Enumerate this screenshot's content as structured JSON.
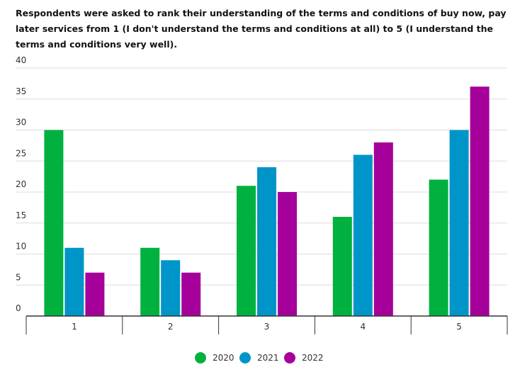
{
  "subtitle": "Respondents were asked to rank their understanding of the terms and conditions of buy now, pay later services from 1 (I don't understand the terms and conditions at all) to 5 (I understand the terms and conditions very well).",
  "colors": {
    "2020": "#00b140",
    "2021": "#0095c8",
    "2022": "#a6009a",
    "gridline": "#dcdcdc",
    "axis": "#333333"
  },
  "chart_data": {
    "type": "bar",
    "title": "",
    "xlabel": "",
    "ylabel": "",
    "categories": [
      "1",
      "2",
      "3",
      "4",
      "5"
    ],
    "ylim": [
      0,
      40
    ],
    "yticks": [
      0,
      5,
      10,
      15,
      20,
      25,
      30,
      35,
      40
    ],
    "grid": true,
    "legend_position": "bottom-center",
    "series": [
      {
        "name": "2020",
        "color": "#00b140",
        "values": [
          30,
          11,
          21,
          16,
          22
        ]
      },
      {
        "name": "2021",
        "color": "#0095c8",
        "values": [
          11,
          9,
          24,
          26,
          30
        ]
      },
      {
        "name": "2022",
        "color": "#a6009a",
        "values": [
          7,
          7,
          20,
          28,
          37
        ]
      }
    ]
  }
}
